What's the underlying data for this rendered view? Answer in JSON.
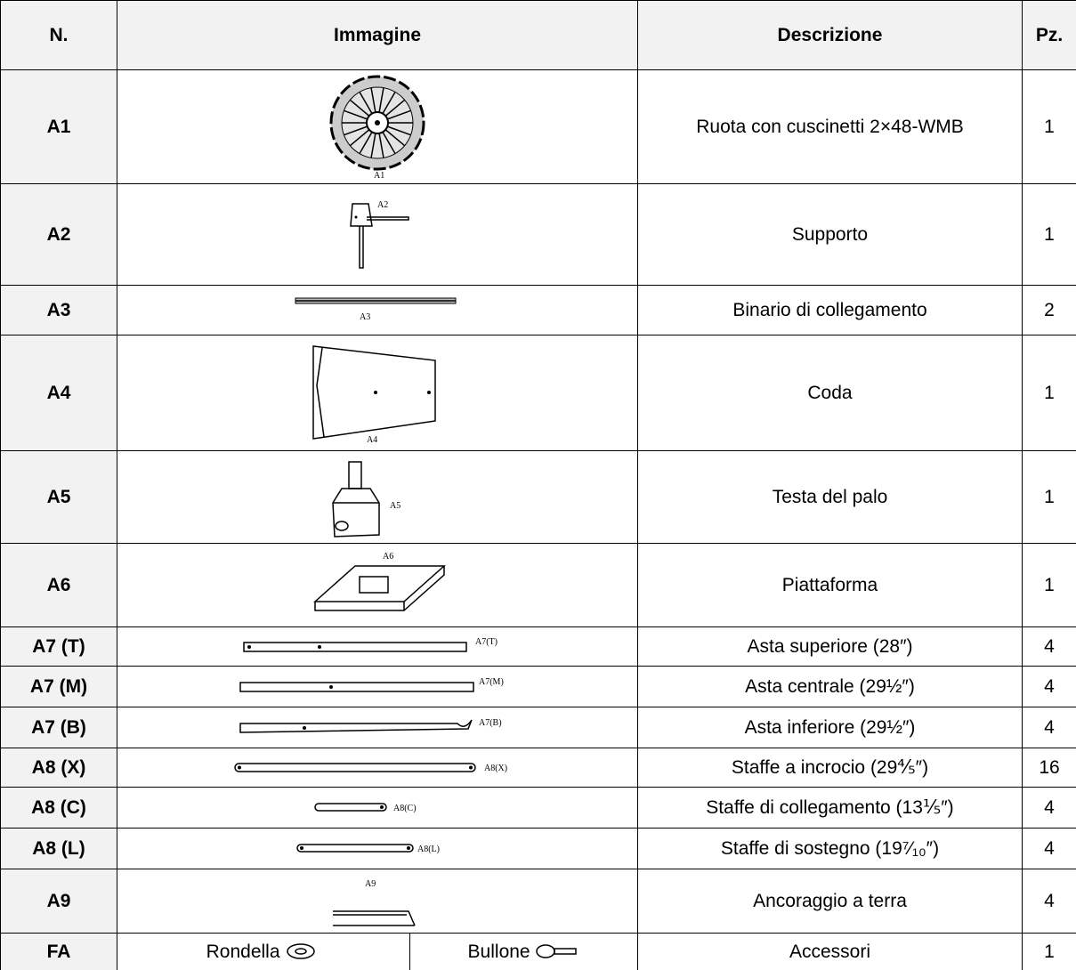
{
  "header": {
    "n": "N.",
    "image": "Immagine",
    "description": "Descrizione",
    "qty": "Pz."
  },
  "rows": [
    {
      "n": "A1",
      "image_label": "A1",
      "description": "Ruota con cuscinetti 2×48-WMB",
      "qty": 1
    },
    {
      "n": "A2",
      "image_label": "A2",
      "description": "Supporto",
      "qty": 1
    },
    {
      "n": "A3",
      "image_label": "A3",
      "description": "Binario di collegamento",
      "qty": 2
    },
    {
      "n": "A4",
      "image_label": "A4",
      "description": "Coda",
      "qty": 1
    },
    {
      "n": "A5",
      "image_label": "A5",
      "description": "Testa del palo",
      "qty": 1
    },
    {
      "n": "A6",
      "image_label": "A6",
      "description": "Piattaforma",
      "qty": 1
    },
    {
      "n": "A7 (T)",
      "image_label": "A7(T)",
      "description": "Asta superiore (28″)",
      "qty": 4
    },
    {
      "n": "A7 (M)",
      "image_label": "A7(M)",
      "description": "Asta centrale (29½″)",
      "qty": 4
    },
    {
      "n": "A7 (B)",
      "image_label": "A7(B)",
      "description": "Asta inferiore (29½″)",
      "qty": 4
    },
    {
      "n": "A8 (X)",
      "image_label": "A8(X)",
      "description": "Staffe a incrocio (29⅘″)",
      "qty": 16
    },
    {
      "n": "A8 (C)",
      "image_label": "A8(C)",
      "description": "Staffe di collegamento (13⅕″)",
      "qty": 4
    },
    {
      "n": "A8 (L)",
      "image_label": "A8(L)",
      "description": "Staffe di sostegno (19⁷⁄₁₀″)",
      "qty": 4
    },
    {
      "n": "A9",
      "image_label": "A9",
      "description": "Ancoraggio a terra",
      "qty": 4
    },
    {
      "n": "FA",
      "image_items": [
        "Rondella",
        "Bullone"
      ],
      "description": "Accessori",
      "qty": 1
    }
  ]
}
